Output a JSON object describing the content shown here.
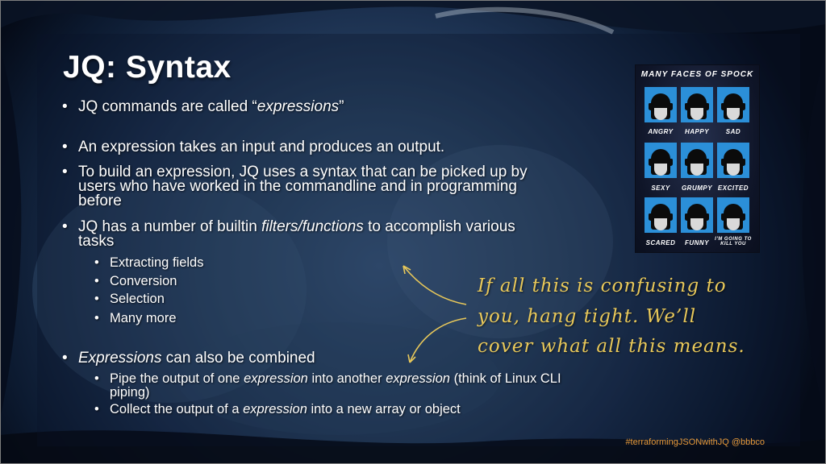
{
  "slide": {
    "title": "JQ: Syntax",
    "bullets": [
      {
        "pre": "JQ commands are called “",
        "em": "expressions",
        "post": "”"
      },
      {
        "text": "An expression takes an input and produces an output."
      },
      {
        "line1": "To build an expression, JQ uses a syntax  that can be picked up by",
        "line2": "users who have worked in the commandline and in programming",
        "line3": "before"
      },
      {
        "pre": "JQ has a number of builtin ",
        "em": "filters/functions",
        "post": " to accomplish various",
        "line2": "tasks"
      }
    ],
    "sub_bullets": [
      "Extracting fields",
      "Conversion",
      "Selection",
      "Many more"
    ],
    "combine_bullet": {
      "em": "Expressions",
      "post": " can also be combined"
    },
    "combine_subs": [
      {
        "pre": "Pipe the output of one ",
        "em1": "expression",
        "mid": " into another ",
        "em2": "expression",
        "post": " (think of Linux CLI",
        "line2": "piping)"
      },
      {
        "pre": "Collect the output of a ",
        "em": "expression",
        "post": " into a new array or object"
      }
    ],
    "bullet_char": "•"
  },
  "note": {
    "lines": [
      "If all this is confusing to",
      "you, hang tight. We’ll",
      "cover what all this means."
    ],
    "color": "#e8c85a"
  },
  "poster": {
    "title": "MANY FACES OF SPOCK",
    "faces": [
      "ANGRY",
      "HAPPY",
      "SAD",
      "SEXY",
      "GRUMPY",
      "EXCITED",
      "SCARED",
      "FUNNY",
      "I'M GOING TO KILL YOU"
    ],
    "panel_color": "#2b8fd8"
  },
  "footer": "#terraformingJSONwithJQ @bbbco"
}
